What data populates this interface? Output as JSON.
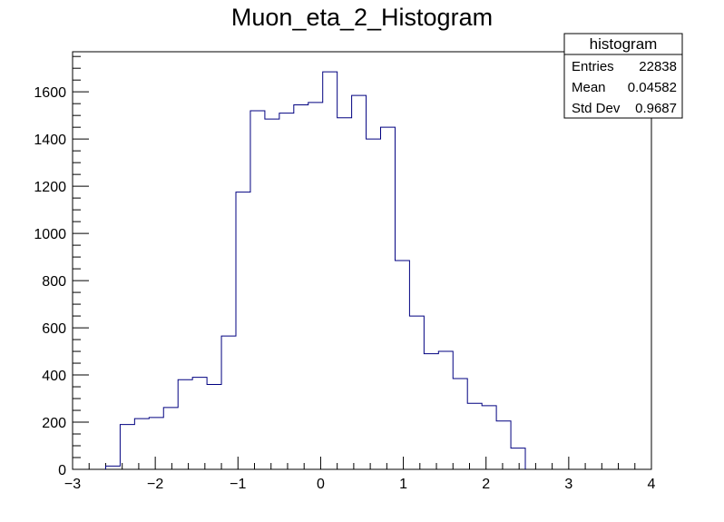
{
  "chart_data": {
    "type": "bar",
    "title": "Muon_eta_2_Histogram",
    "xlabel": "",
    "ylabel": "",
    "xlim": [
      -3,
      4
    ],
    "ylim": [
      0,
      1770
    ],
    "x_ticks": [
      -3,
      -2,
      -1,
      0,
      1,
      2,
      3,
      4
    ],
    "y_ticks": [
      0,
      200,
      400,
      600,
      800,
      1000,
      1200,
      1400,
      1600
    ],
    "x_tick_labels": [
      "−3",
      "−2",
      "−1",
      "0",
      "1",
      "2",
      "3",
      "4"
    ],
    "y_tick_labels": [
      "0",
      "200",
      "400",
      "600",
      "800",
      "1000",
      "1200",
      "1400",
      "1600"
    ],
    "bin_width": 0.175,
    "bin_edges_start": -2.6,
    "values": [
      14,
      190,
      215,
      220,
      262,
      380,
      390,
      360,
      565,
      1175,
      1520,
      1485,
      1510,
      1545,
      1555,
      1685,
      1490,
      1585,
      1400,
      1450,
      885,
      650,
      490,
      500,
      385,
      280,
      270,
      205,
      90
    ],
    "line_color": "#000080",
    "grid": false,
    "stats_box": {
      "title": "histogram",
      "rows": [
        {
          "label": "Entries",
          "value": "22838"
        },
        {
          "label": "Mean",
          "value": "0.04582"
        },
        {
          "label": "Std Dev",
          "value": "0.9687"
        }
      ],
      "placement": "top-right"
    }
  }
}
